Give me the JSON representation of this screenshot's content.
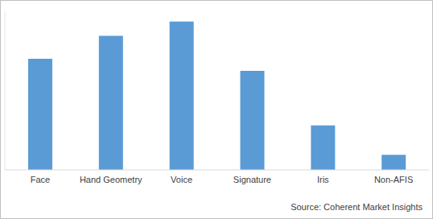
{
  "chart_data": {
    "type": "bar",
    "categories": [
      "Face",
      "Hand Geometry",
      "Voice",
      "Signature",
      "Iris",
      "Non-AFIS"
    ],
    "values": [
      140,
      169,
      187,
      125,
      56,
      19
    ],
    "color": "#5b9bd5",
    "ylim": [
      0,
      200
    ],
    "tick_labels": "x",
    "grid": false,
    "source": "Source: Coherent Market Insights"
  }
}
